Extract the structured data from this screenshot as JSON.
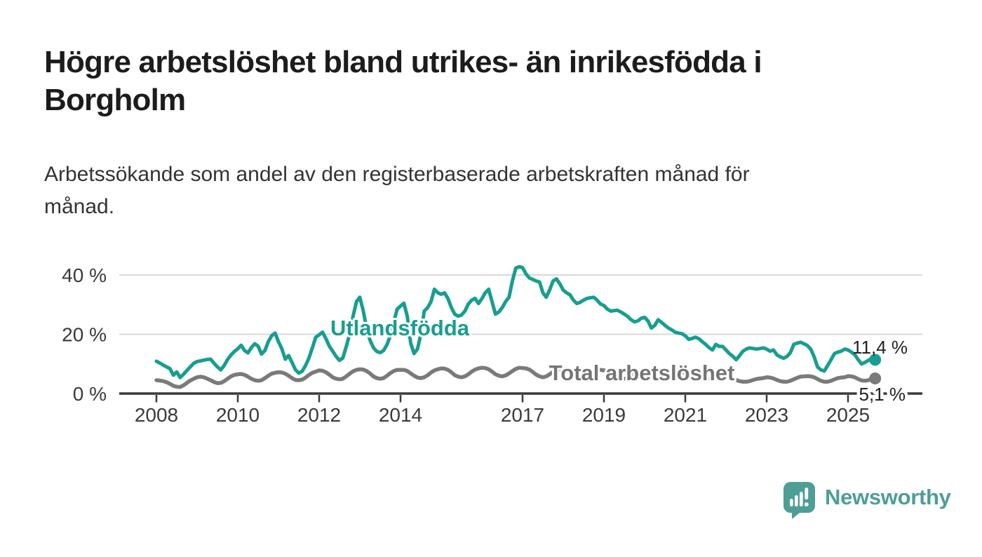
{
  "header": {
    "title_line1": "Högre arbetslöshet bland utrikes- än inrikesfödda i",
    "title_line2": "Borgholm",
    "subtitle_line1": "Arbetssökande som andel av den registerbaserade arbetskraften månad för",
    "subtitle_line2": "månad."
  },
  "branding": {
    "name": "Newsworthy",
    "icon": "newsworthy-speech-bubble-bar-chart-icon",
    "color": "#4d9e96"
  },
  "colors": {
    "foreign_born_line": "#179e90",
    "total_line": "#7a7a7a",
    "axis": "#3a3a3a",
    "gridline": "#d9d9d9",
    "end_label_text": "#222222",
    "title_text": "#1c1c1c",
    "subtitle_text": "#333333"
  },
  "chart_data": {
    "type": "line",
    "title": "Högre arbetslöshet bland utrikes- än inrikesfödda i Borgholm",
    "subtitle": "Arbetssökande som andel av den registerbaserade arbetskraften månad för månad.",
    "frequency": "monthly",
    "x_start": "2008-01",
    "x_end": "2025-09",
    "xlabel": "",
    "ylabel": "",
    "ylim": [
      0,
      45
    ],
    "grid": "horizontal",
    "legend_position": "inline-labels",
    "yticks": [
      {
        "value": 0,
        "label": "0 %"
      },
      {
        "value": 20,
        "label": "20 %"
      },
      {
        "value": 40,
        "label": "40 %"
      }
    ],
    "xticks": [
      {
        "year": 2008,
        "label": "2008"
      },
      {
        "year": 2010,
        "label": "2010"
      },
      {
        "year": 2012,
        "label": "2012"
      },
      {
        "year": 2014,
        "label": "2014"
      },
      {
        "year": 2017,
        "label": "2017"
      },
      {
        "year": 2019,
        "label": "2019"
      },
      {
        "year": 2021,
        "label": "2021"
      },
      {
        "year": 2023,
        "label": "2023"
      },
      {
        "year": 2025,
        "label": "2025"
      }
    ],
    "series": [
      {
        "name": "Utlandsfödda",
        "color": "#179e90",
        "end_label": "11,4 %",
        "last_value": 11.4,
        "values": [
          10.9,
          10.3,
          9.6,
          9.0,
          8.4,
          6.2,
          7.3,
          5.4,
          6.5,
          7.8,
          9.0,
          10.2,
          10.8,
          11.0,
          11.3,
          11.5,
          11.6,
          10.2,
          9.0,
          8.0,
          9.5,
          11.5,
          13.0,
          14.2,
          15.1,
          16.3,
          14.5,
          13.7,
          15.5,
          16.8,
          16.0,
          13.3,
          14.5,
          17.5,
          19.5,
          20.4,
          17.5,
          15.1,
          11.6,
          12.8,
          10.5,
          8.0,
          6.9,
          7.5,
          9.5,
          12.0,
          15.4,
          19.0,
          19.8,
          20.7,
          18.5,
          16.0,
          14.3,
          12.5,
          11.2,
          12.0,
          15.9,
          20.0,
          26.0,
          31.0,
          32.5,
          28.0,
          22.0,
          18.0,
          15.5,
          14.2,
          13.8,
          14.5,
          16.5,
          19.5,
          24.0,
          28.5,
          29.5,
          30.5,
          26.0,
          17.0,
          13.5,
          15.0,
          20.0,
          27.8,
          29.0,
          31.0,
          35.2,
          34.0,
          33.5,
          34.0,
          32.0,
          29.0,
          26.8,
          26.1,
          26.5,
          27.8,
          30.2,
          31.5,
          32.1,
          30.4,
          32.0,
          34.0,
          35.2,
          31.0,
          26.8,
          27.5,
          29.0,
          31.0,
          32.5,
          38.0,
          42.3,
          42.8,
          42.5,
          40.4,
          39.0,
          38.5,
          38.0,
          37.6,
          34.0,
          32.5,
          35.0,
          38.0,
          38.7,
          37.0,
          34.9,
          34.0,
          33.3,
          31.5,
          30.4,
          30.8,
          31.5,
          32.1,
          32.3,
          32.5,
          31.5,
          30.2,
          29.7,
          28.5,
          27.8,
          28.0,
          28.1,
          27.5,
          26.8,
          26.0,
          24.9,
          24.2,
          24.5,
          25.4,
          25.7,
          24.5,
          22.1,
          23.0,
          24.9,
          24.0,
          23.0,
          22.1,
          21.5,
          20.7,
          20.4,
          20.2,
          19.5,
          18.3,
          18.6,
          19.0,
          18.5,
          17.5,
          16.6,
          15.5,
          14.7,
          16.6,
          15.9,
          15.9,
          14.7,
          13.5,
          12.6,
          11.4,
          12.8,
          14.3,
          15.0,
          15.4,
          15.2,
          15.0,
          15.2,
          15.4,
          15.0,
          14.3,
          14.7,
          13.1,
          12.4,
          11.9,
          12.5,
          13.8,
          16.6,
          17.0,
          17.3,
          16.8,
          16.2,
          15.0,
          12.4,
          9.0,
          8.0,
          7.6,
          9.5,
          11.4,
          13.5,
          14.0,
          14.3,
          15.0,
          14.7,
          14.0,
          13.1,
          11.4,
          10.0,
          10.5,
          11.2,
          11.9,
          11.4
        ]
      },
      {
        "name": "Total arbetslöshet",
        "color": "#7a7a7a",
        "end_label": "5,1 %",
        "last_value": 5.1,
        "values": [
          4.5,
          4.4,
          4.2,
          3.8,
          3.3,
          2.6,
          2.3,
          2.2,
          2.8,
          3.6,
          4.4,
          5.0,
          5.5,
          5.7,
          5.5,
          5.0,
          4.5,
          3.9,
          3.5,
          3.6,
          4.2,
          5.0,
          5.8,
          6.3,
          6.5,
          6.6,
          6.3,
          5.7,
          5.0,
          4.5,
          4.3,
          4.5,
          5.2,
          6.0,
          6.7,
          7.0,
          7.2,
          7.1,
          6.7,
          6.0,
          5.2,
          4.6,
          4.5,
          4.7,
          5.4,
          6.3,
          7.0,
          7.4,
          7.8,
          7.7,
          7.2,
          6.4,
          5.5,
          5.0,
          4.8,
          5.0,
          5.8,
          6.7,
          7.5,
          8.0,
          8.2,
          8.1,
          7.6,
          6.8,
          5.8,
          5.2,
          5.0,
          5.2,
          6.0,
          6.9,
          7.6,
          8.0,
          8.0,
          8.0,
          7.6,
          6.8,
          6.0,
          5.4,
          5.2,
          5.5,
          6.2,
          7.1,
          7.8,
          8.2,
          8.5,
          8.4,
          8.0,
          7.2,
          6.2,
          5.7,
          5.5,
          5.8,
          6.5,
          7.4,
          8.1,
          8.5,
          8.7,
          8.6,
          8.2,
          7.4,
          6.5,
          6.0,
          5.8,
          6.1,
          6.8,
          7.6,
          8.3,
          8.7,
          8.6,
          8.5,
          8.1,
          7.3,
          6.4,
          5.8,
          5.5,
          5.8,
          6.5,
          7.3,
          8.0,
          8.3,
          8.3,
          8.2,
          7.8,
          7.0,
          6.1,
          5.5,
          5.2,
          5.5,
          6.2,
          7.0,
          7.7,
          8.0,
          7.8,
          7.7,
          7.3,
          6.6,
          5.8,
          5.2,
          5.0,
          5.2,
          5.9,
          6.7,
          7.3,
          7.5,
          7.5,
          7.4,
          7.6,
          8.0,
          7.6,
          6.8,
          6.0,
          6.2,
          6.6,
          7.0,
          7.2,
          7.2,
          7.0,
          6.9,
          6.5,
          5.9,
          5.3,
          4.9,
          4.8,
          5.0,
          5.4,
          5.8,
          6.0,
          6.0,
          5.5,
          5.4,
          5.1,
          4.6,
          4.2,
          4.0,
          4.0,
          4.2,
          4.6,
          4.9,
          5.1,
          5.2,
          5.5,
          5.4,
          5.1,
          4.6,
          4.2,
          4.0,
          4.0,
          4.3,
          4.8,
          5.3,
          5.7,
          5.8,
          5.9,
          5.8,
          5.5,
          4.9,
          4.3,
          4.0,
          4.0,
          4.3,
          4.8,
          5.2,
          5.4,
          5.5,
          5.9,
          5.8,
          5.5,
          4.9,
          4.4,
          4.3,
          4.5,
          4.9,
          5.1
        ]
      }
    ]
  }
}
